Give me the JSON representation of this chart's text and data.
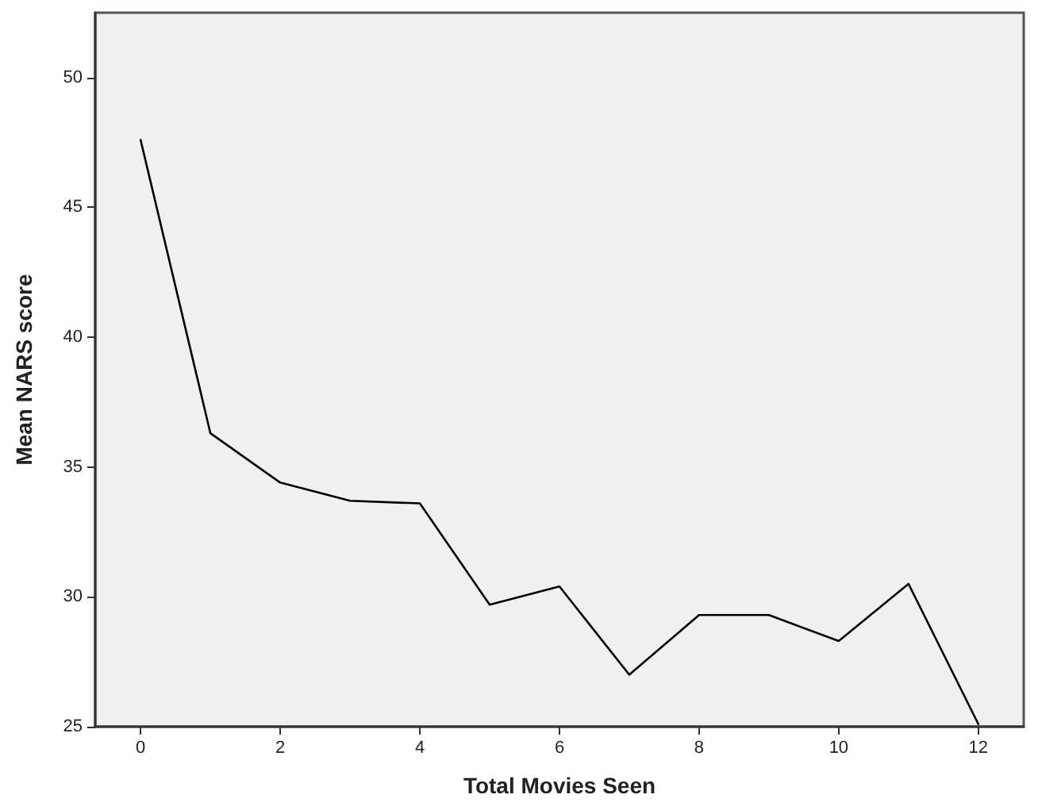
{
  "chart_data": {
    "type": "line",
    "xlabel": "Total Movies Seen",
    "ylabel": "Mean NARS score",
    "x": [
      0,
      1,
      2,
      3,
      4,
      5,
      6,
      7,
      8,
      9,
      10,
      11,
      12
    ],
    "series": [
      {
        "color": "#000000",
        "values": [
          47.6,
          36.3,
          34.4,
          33.7,
          33.6,
          29.7,
          30.4,
          27.0,
          29.3,
          29.3,
          28.3,
          30.5,
          25.1
        ]
      }
    ],
    "xlim": [
      -0.65,
      12.65
    ],
    "xticks": [
      0,
      2,
      4,
      6,
      8,
      10,
      12
    ],
    "ylim": [
      25,
      52.5
    ],
    "yticks": [
      25,
      30,
      35,
      40,
      45,
      50
    ],
    "grid": false,
    "marker": "none",
    "line_style": "solid"
  }
}
